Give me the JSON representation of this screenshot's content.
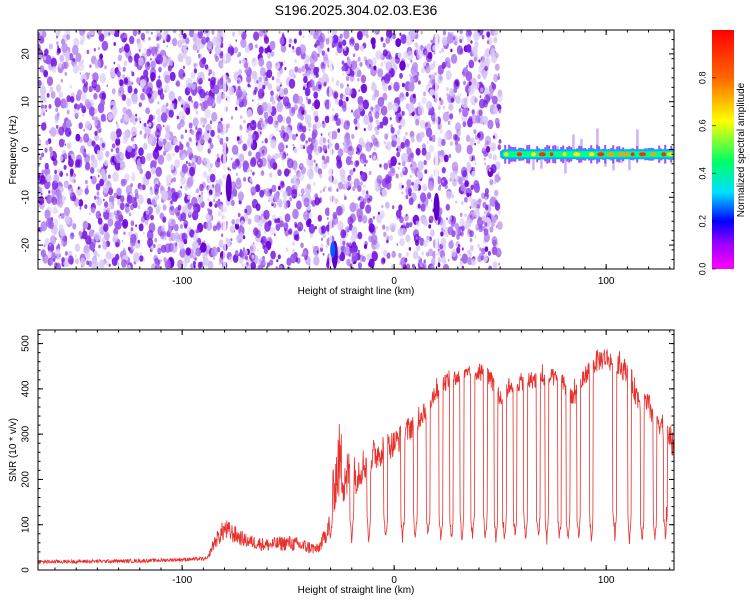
{
  "title": "S196.2025.304.02.03.E36",
  "colors": {
    "line": "#e8302c",
    "frame": "#000000",
    "background": "#ffffff",
    "noise_palette": [
      "#d9c8f5",
      "#b88cf0",
      "#9a55ea",
      "#7b22e6",
      "#6a00d8"
    ],
    "cmap_stops": [
      "#ff00ff",
      "#6a00ff",
      "#0000ff",
      "#00e0ff",
      "#00ff66",
      "#ffff00",
      "#ff6600",
      "#ff0000"
    ]
  },
  "chart_data": [
    {
      "type": "heatmap",
      "name": "spectrogram",
      "xlabel": "Height of straight line (km)",
      "ylabel": "Frequency (Hz)",
      "xlim": [
        -168,
        132
      ],
      "ylim": [
        -25,
        25
      ],
      "xticks": [
        -100,
        0,
        100
      ],
      "xtick_labels": [
        "-100",
        "0",
        "100"
      ],
      "yticks": [
        -20,
        -10,
        0,
        10,
        20
      ],
      "ytick_labels": [
        "-20",
        "-10",
        "0",
        "10",
        "20"
      ],
      "signal_start_km": 50,
      "signal_center_hz": -1,
      "colorbar": {
        "label": "Normalized spectral amplitude",
        "range": [
          0,
          1
        ],
        "ticks": [
          0.0,
          0.2,
          0.4,
          0.6,
          0.8
        ],
        "tick_labels": [
          "0.0",
          "0.2",
          "0.4",
          "0.6",
          "0.8"
        ]
      }
    },
    {
      "type": "line",
      "name": "snr",
      "xlabel": "Height of straight line (km)",
      "ylabel": "SNR (10 * v/v)",
      "xlim": [
        -168,
        132
      ],
      "ylim": [
        0,
        530
      ],
      "xticks": [
        -100,
        0,
        100
      ],
      "xtick_labels": [
        "-100",
        "0",
        "100"
      ],
      "yticks": [
        0,
        100,
        200,
        300,
        400,
        500
      ],
      "ytick_labels": [
        "0",
        "100",
        "200",
        "300",
        "400",
        "500"
      ],
      "series": [
        {
          "name": "SNR",
          "x": [
            -168,
            -120,
            -88,
            -85,
            -80,
            -70,
            -60,
            -50,
            -40,
            -36,
            -32,
            -28,
            -26,
            -24,
            -20,
            -15,
            -10,
            -5,
            0,
            5,
            10,
            15,
            20,
            25,
            30,
            35,
            40,
            45,
            50,
            55,
            60,
            65,
            70,
            75,
            80,
            85,
            90,
            95,
            100,
            105,
            110,
            115,
            120,
            125,
            130,
            132
          ],
          "base": [
            18,
            20,
            25,
            60,
            90,
            65,
            55,
            60,
            50,
            45,
            80,
            190,
            240,
            220,
            200,
            230,
            250,
            270,
            280,
            300,
            330,
            360,
            400,
            420,
            425,
            430,
            440,
            420,
            380,
            410,
            415,
            420,
            420,
            425,
            410,
            380,
            430,
            460,
            470,
            450,
            440,
            380,
            360,
            330,
            300,
            260
          ],
          "spread": [
            8,
            8,
            8,
            30,
            50,
            30,
            30,
            35,
            30,
            25,
            40,
            120,
            180,
            160,
            100,
            80,
            80,
            70,
            60,
            60,
            60,
            60,
            50,
            40,
            40,
            40,
            40,
            50,
            50,
            40,
            40,
            40,
            40,
            40,
            40,
            40,
            40,
            50,
            50,
            50,
            50,
            60,
            60,
            60,
            60,
            60
          ],
          "dips_km": [
            -30,
            -20,
            -12,
            -4,
            4,
            10,
            16,
            22,
            27,
            32,
            37,
            43,
            48,
            52,
            57,
            62,
            68,
            72,
            78,
            82,
            87,
            93,
            104,
            111,
            117,
            123,
            128
          ],
          "dip_floor": 55
        }
      ]
    }
  ]
}
